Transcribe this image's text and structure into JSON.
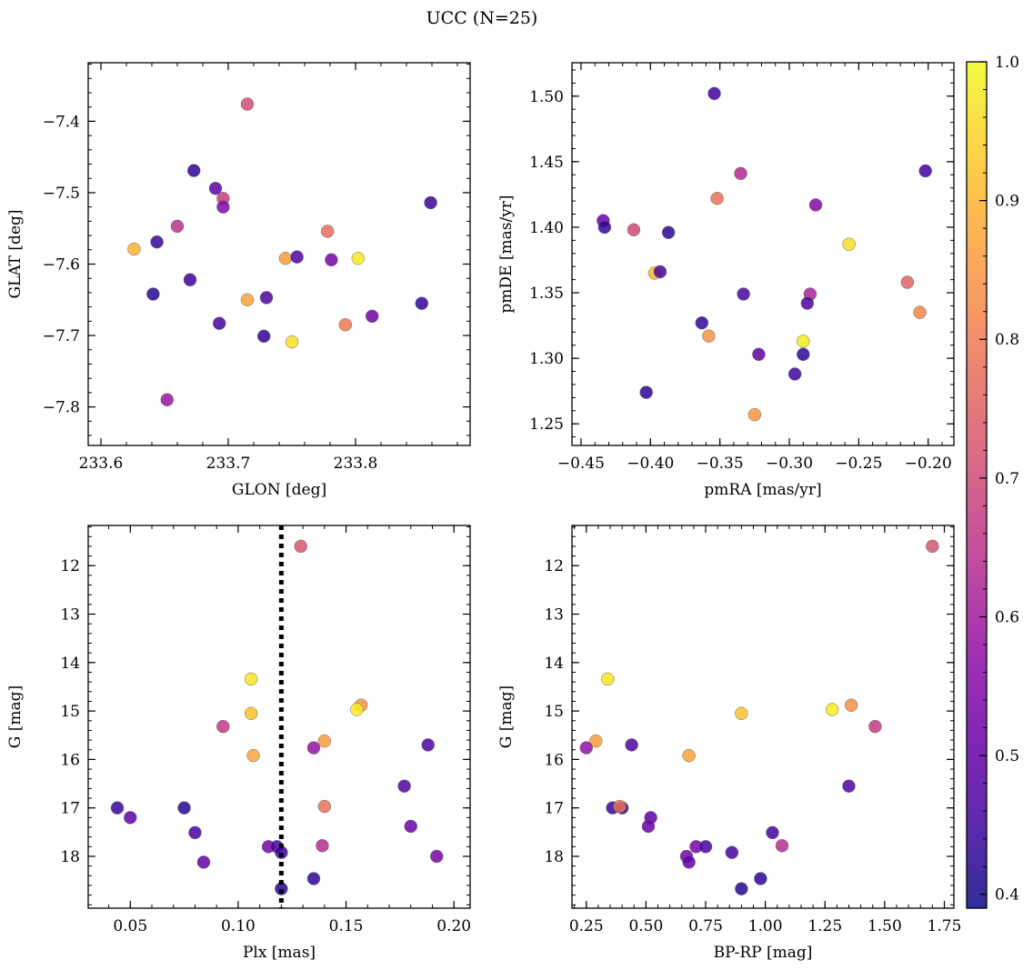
{
  "figure": {
    "title": "UCC (N=25)"
  },
  "colorbar": {
    "min": 0.39,
    "max": 1.0,
    "ticks": [
      0.4,
      0.5,
      0.6,
      0.7,
      0.8,
      0.9,
      1.0
    ],
    "tick_labels": [
      "0.4",
      "0.5",
      "0.6",
      "0.7",
      "0.8",
      "0.9",
      "1.0"
    ],
    "colormap": "plasma"
  },
  "chart_data": [
    {
      "type": "scatter",
      "xlabel": "GLON [deg]",
      "ylabel": "GLAT [deg]",
      "xlim": [
        233.59,
        233.89
      ],
      "ylim": [
        -7.854,
        -7.318
      ],
      "y_inverted": false,
      "xticks": [
        233.6,
        233.7,
        233.8
      ],
      "xtick_labels": [
        "233.6",
        "233.7",
        "233.8"
      ],
      "yticks": [
        -7.4,
        -7.5,
        -7.6,
        -7.7,
        -7.8
      ],
      "ytick_labels": [
        "−7.4",
        "−7.5",
        "−7.6",
        "−7.7",
        "−7.8"
      ],
      "points": [
        {
          "x": 233.715,
          "y": -7.376,
          "c": 0.71
        },
        {
          "x": 233.673,
          "y": -7.469,
          "c": 0.43
        },
        {
          "x": 233.69,
          "y": -7.494,
          "c": 0.49
        },
        {
          "x": 233.696,
          "y": -7.508,
          "c": 0.68
        },
        {
          "x": 233.696,
          "y": -7.52,
          "c": 0.55
        },
        {
          "x": 233.859,
          "y": -7.514,
          "c": 0.44
        },
        {
          "x": 233.66,
          "y": -7.547,
          "c": 0.65
        },
        {
          "x": 233.644,
          "y": -7.569,
          "c": 0.44
        },
        {
          "x": 233.626,
          "y": -7.579,
          "c": 0.9
        },
        {
          "x": 233.778,
          "y": -7.554,
          "c": 0.77
        },
        {
          "x": 233.745,
          "y": -7.592,
          "c": 0.86
        },
        {
          "x": 233.754,
          "y": -7.59,
          "c": 0.47
        },
        {
          "x": 233.781,
          "y": -7.594,
          "c": 0.53
        },
        {
          "x": 233.802,
          "y": -7.592,
          "c": 0.98
        },
        {
          "x": 233.641,
          "y": -7.642,
          "c": 0.42
        },
        {
          "x": 233.67,
          "y": -7.622,
          "c": 0.44
        },
        {
          "x": 233.715,
          "y": -7.65,
          "c": 0.87
        },
        {
          "x": 233.73,
          "y": -7.647,
          "c": 0.47
        },
        {
          "x": 233.852,
          "y": -7.655,
          "c": 0.43
        },
        {
          "x": 233.693,
          "y": -7.683,
          "c": 0.46
        },
        {
          "x": 233.792,
          "y": -7.685,
          "c": 0.8
        },
        {
          "x": 233.813,
          "y": -7.673,
          "c": 0.52
        },
        {
          "x": 233.728,
          "y": -7.701,
          "c": 0.43
        },
        {
          "x": 233.75,
          "y": -7.709,
          "c": 0.96
        },
        {
          "x": 233.652,
          "y": -7.79,
          "c": 0.59
        }
      ]
    },
    {
      "type": "scatter",
      "xlabel": "pmRA [mas/yr]",
      "ylabel": "pmDE [mas/yr]",
      "xlim": [
        -0.4565,
        -0.1815
      ],
      "ylim": [
        1.2335,
        1.5255
      ],
      "y_inverted": false,
      "xticks": [
        -0.45,
        -0.4,
        -0.35,
        -0.3,
        -0.25,
        -0.2
      ],
      "xtick_labels": [
        "−0.45",
        "−0.40",
        "−0.35",
        "−0.30",
        "−0.25",
        "−0.20"
      ],
      "yticks": [
        1.25,
        1.3,
        1.35,
        1.4,
        1.45,
        1.5
      ],
      "ytick_labels": [
        "1.25",
        "1.30",
        "1.35",
        "1.40",
        "1.45",
        "1.50"
      ],
      "points": [
        {
          "x": -0.354,
          "y": 1.502,
          "c": 0.45
        },
        {
          "x": -0.202,
          "y": 1.443,
          "c": 0.45
        },
        {
          "x": -0.335,
          "y": 1.441,
          "c": 0.63
        },
        {
          "x": -0.352,
          "y": 1.422,
          "c": 0.78
        },
        {
          "x": -0.281,
          "y": 1.417,
          "c": 0.55
        },
        {
          "x": -0.434,
          "y": 1.405,
          "c": 0.51
        },
        {
          "x": -0.433,
          "y": 1.4,
          "c": 0.43
        },
        {
          "x": -0.412,
          "y": 1.398,
          "c": 0.7
        },
        {
          "x": -0.387,
          "y": 1.396,
          "c": 0.43
        },
        {
          "x": -0.257,
          "y": 1.387,
          "c": 0.96
        },
        {
          "x": -0.397,
          "y": 1.365,
          "c": 0.9
        },
        {
          "x": -0.393,
          "y": 1.366,
          "c": 0.46
        },
        {
          "x": -0.215,
          "y": 1.358,
          "c": 0.75
        },
        {
          "x": -0.333,
          "y": 1.349,
          "c": 0.46
        },
        {
          "x": -0.285,
          "y": 1.349,
          "c": 0.62
        },
        {
          "x": -0.287,
          "y": 1.342,
          "c": 0.47
        },
        {
          "x": -0.206,
          "y": 1.335,
          "c": 0.82
        },
        {
          "x": -0.363,
          "y": 1.327,
          "c": 0.43
        },
        {
          "x": -0.358,
          "y": 1.317,
          "c": 0.84
        },
        {
          "x": -0.29,
          "y": 1.313,
          "c": 0.98
        },
        {
          "x": -0.322,
          "y": 1.303,
          "c": 0.5
        },
        {
          "x": -0.29,
          "y": 1.303,
          "c": 0.43
        },
        {
          "x": -0.296,
          "y": 1.288,
          "c": 0.45
        },
        {
          "x": -0.403,
          "y": 1.274,
          "c": 0.43
        },
        {
          "x": -0.325,
          "y": 1.257,
          "c": 0.85
        }
      ]
    },
    {
      "type": "scatter",
      "xlabel": "Plx [mas]",
      "ylabel": "G [mag]",
      "xlim": [
        0.0305,
        0.2075
      ],
      "ylim": [
        11.17,
        19.07
      ],
      "y_inverted": true,
      "xticks": [
        0.05,
        0.1,
        0.15,
        0.2
      ],
      "xtick_labels": [
        "0.05",
        "0.10",
        "0.15",
        "0.20"
      ],
      "yticks": [
        12,
        13,
        14,
        15,
        16,
        17,
        18
      ],
      "ytick_labels": [
        "12",
        "13",
        "14",
        "15",
        "16",
        "17",
        "18"
      ],
      "vline": {
        "x": 0.12,
        "style": "dotted",
        "color": "#000000"
      },
      "points": [
        {
          "x": 0.129,
          "y": 11.6,
          "c": 0.72
        },
        {
          "x": 0.106,
          "y": 14.34,
          "c": 0.97
        },
        {
          "x": 0.157,
          "y": 14.88,
          "c": 0.84
        },
        {
          "x": 0.155,
          "y": 14.97,
          "c": 0.98
        },
        {
          "x": 0.106,
          "y": 15.05,
          "c": 0.92
        },
        {
          "x": 0.093,
          "y": 15.32,
          "c": 0.67
        },
        {
          "x": 0.14,
          "y": 15.62,
          "c": 0.86
        },
        {
          "x": 0.188,
          "y": 15.7,
          "c": 0.47
        },
        {
          "x": 0.135,
          "y": 15.76,
          "c": 0.58
        },
        {
          "x": 0.107,
          "y": 15.92,
          "c": 0.87
        },
        {
          "x": 0.177,
          "y": 16.55,
          "c": 0.47
        },
        {
          "x": 0.044,
          "y": 17.0,
          "c": 0.44
        },
        {
          "x": 0.075,
          "y": 17.0,
          "c": 0.42
        },
        {
          "x": 0.14,
          "y": 16.97,
          "c": 0.78
        },
        {
          "x": 0.05,
          "y": 17.2,
          "c": 0.49
        },
        {
          "x": 0.18,
          "y": 17.38,
          "c": 0.51
        },
        {
          "x": 0.08,
          "y": 17.51,
          "c": 0.46
        },
        {
          "x": 0.139,
          "y": 17.78,
          "c": 0.64
        },
        {
          "x": 0.114,
          "y": 17.8,
          "c": 0.53
        },
        {
          "x": 0.118,
          "y": 17.8,
          "c": 0.46
        },
        {
          "x": 0.12,
          "y": 17.92,
          "c": 0.45
        },
        {
          "x": 0.192,
          "y": 18.0,
          "c": 0.53
        },
        {
          "x": 0.084,
          "y": 18.12,
          "c": 0.5
        },
        {
          "x": 0.135,
          "y": 18.46,
          "c": 0.43
        },
        {
          "x": 0.12,
          "y": 18.67,
          "c": 0.42
        }
      ]
    },
    {
      "type": "scatter",
      "xlabel": "BP-RP [mag]",
      "ylabel": "G [mag]",
      "xlim": [
        0.19,
        1.79
      ],
      "ylim": [
        11.17,
        19.07
      ],
      "y_inverted": true,
      "xticks": [
        0.25,
        0.5,
        0.75,
        1.0,
        1.25,
        1.5,
        1.75
      ],
      "xtick_labels": [
        "0.25",
        "0.50",
        "0.75",
        "1.00",
        "1.25",
        "1.50",
        "1.75"
      ],
      "yticks": [
        12,
        13,
        14,
        15,
        16,
        17,
        18
      ],
      "ytick_labels": [
        "12",
        "13",
        "14",
        "15",
        "16",
        "17",
        "18"
      ],
      "points": [
        {
          "x": 1.7,
          "y": 11.6,
          "c": 0.72
        },
        {
          "x": 0.34,
          "y": 14.34,
          "c": 0.97
        },
        {
          "x": 1.36,
          "y": 14.88,
          "c": 0.84
        },
        {
          "x": 1.28,
          "y": 14.97,
          "c": 0.98
        },
        {
          "x": 0.9,
          "y": 15.05,
          "c": 0.92
        },
        {
          "x": 1.46,
          "y": 15.32,
          "c": 0.67
        },
        {
          "x": 0.29,
          "y": 15.62,
          "c": 0.86
        },
        {
          "x": 0.44,
          "y": 15.7,
          "c": 0.47
        },
        {
          "x": 0.25,
          "y": 15.76,
          "c": 0.58
        },
        {
          "x": 0.68,
          "y": 15.92,
          "c": 0.87
        },
        {
          "x": 1.35,
          "y": 16.55,
          "c": 0.47
        },
        {
          "x": 0.36,
          "y": 17.0,
          "c": 0.44
        },
        {
          "x": 0.4,
          "y": 17.0,
          "c": 0.42
        },
        {
          "x": 0.39,
          "y": 16.97,
          "c": 0.78
        },
        {
          "x": 0.52,
          "y": 17.2,
          "c": 0.49
        },
        {
          "x": 0.51,
          "y": 17.38,
          "c": 0.51
        },
        {
          "x": 1.03,
          "y": 17.51,
          "c": 0.46
        },
        {
          "x": 1.07,
          "y": 17.78,
          "c": 0.64
        },
        {
          "x": 0.71,
          "y": 17.8,
          "c": 0.53
        },
        {
          "x": 0.75,
          "y": 17.8,
          "c": 0.46
        },
        {
          "x": 0.86,
          "y": 17.92,
          "c": 0.45
        },
        {
          "x": 0.67,
          "y": 18.0,
          "c": 0.53
        },
        {
          "x": 0.68,
          "y": 18.12,
          "c": 0.5
        },
        {
          "x": 0.98,
          "y": 18.46,
          "c": 0.43
        },
        {
          "x": 0.9,
          "y": 18.67,
          "c": 0.42
        }
      ]
    }
  ]
}
